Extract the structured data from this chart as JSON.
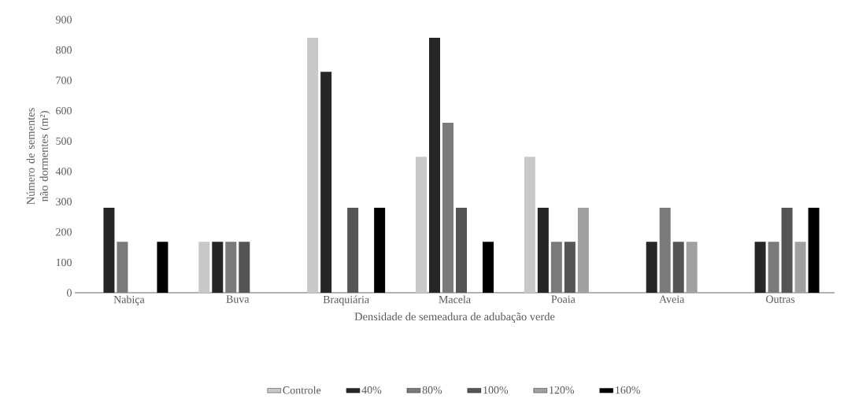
{
  "chart_data": {
    "type": "bar",
    "xlabel": "Densidade de semeadura de adubação verde",
    "ylabel": "Número de sementes não dormentes (m²)",
    "categories": [
      "Nabiça",
      "Buva",
      "Braquiária",
      "Macela",
      "Poaia",
      "Aveia",
      "Outras"
    ],
    "series": [
      {
        "name": "Controle",
        "color": "#c8c8c8",
        "values": [
          0,
          168,
          840,
          448,
          448,
          0,
          0
        ]
      },
      {
        "name": "40%",
        "color": "#262626",
        "values": [
          280,
          168,
          728,
          840,
          280,
          168,
          168
        ]
      },
      {
        "name": "80%",
        "color": "#7a7a7a",
        "values": [
          168,
          168,
          0,
          560,
          168,
          280,
          168
        ]
      },
      {
        "name": "100%",
        "color": "#555555",
        "values": [
          0,
          168,
          280,
          280,
          168,
          168,
          280
        ]
      },
      {
        "name": "120%",
        "color": "#a0a0a0",
        "values": [
          0,
          0,
          0,
          0,
          280,
          168,
          168
        ]
      },
      {
        "name": "160%",
        "color": "#000000",
        "values": [
          168,
          0,
          280,
          168,
          0,
          0,
          280
        ]
      }
    ],
    "ylim": [
      0,
      900
    ],
    "yticks": [
      0,
      100,
      200,
      300,
      400,
      500,
      600,
      700,
      800,
      900
    ],
    "legend": "bottom"
  }
}
